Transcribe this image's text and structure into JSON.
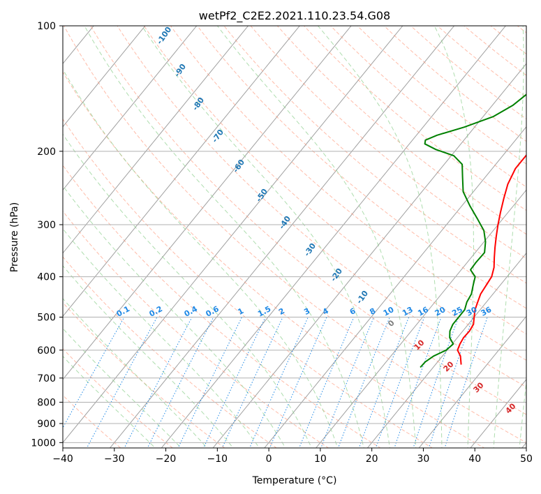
{
  "chart_data": {
    "type": "line",
    "title": "wetPf2_C2E2.2021.110.23.54.G08",
    "xlabel": "Temperature (°C)",
    "ylabel": "Pressure (hPa)",
    "xlim": [
      -40,
      50
    ],
    "ylim": [
      1030,
      100
    ],
    "x_ticks": [
      -40,
      -30,
      -20,
      -10,
      0,
      10,
      20,
      30,
      40,
      50
    ],
    "x_tick_labels": [
      "−40",
      "−30",
      "−20",
      "−10",
      "0",
      "10",
      "20",
      "30",
      "40",
      "50"
    ],
    "y_ticks": [
      100,
      200,
      300,
      400,
      500,
      600,
      700,
      800,
      900,
      1000
    ],
    "y_tick_labels": [
      "100",
      "200",
      "300",
      "400",
      "500",
      "600",
      "700",
      "800",
      "900",
      "1000"
    ],
    "grid": true,
    "series": [
      {
        "name": "temperature",
        "color": "#ff0000",
        "points": [
          [
            650,
            25.0
          ],
          [
            620,
            23.5
          ],
          [
            600,
            22.0
          ],
          [
            580,
            21.5
          ],
          [
            560,
            21.2
          ],
          [
            540,
            21.3
          ],
          [
            520,
            21.0
          ],
          [
            500,
            20.0
          ],
          [
            480,
            19.0
          ],
          [
            460,
            18.3
          ],
          [
            440,
            17.6
          ],
          [
            420,
            17.3
          ],
          [
            400,
            17.0
          ],
          [
            380,
            16.0
          ],
          [
            360,
            14.5
          ],
          [
            340,
            13.0
          ],
          [
            320,
            11.5
          ],
          [
            300,
            10.0
          ],
          [
            280,
            8.5
          ],
          [
            260,
            7.0
          ],
          [
            240,
            5.5
          ],
          [
            220,
            4.5
          ],
          [
            200,
            4.5
          ],
          [
            185,
            6.0
          ],
          [
            170,
            5.5
          ],
          [
            155,
            3.8
          ],
          [
            140,
            2.4
          ],
          [
            128,
            1.6
          ],
          [
            118,
            1.2
          ],
          [
            113,
            0.4
          ],
          [
            108,
            -2.0
          ],
          [
            103,
            -3.6
          ],
          [
            100,
            -4.0
          ]
        ]
      },
      {
        "name": "dewpoint",
        "color": "#008000",
        "points": [
          [
            660,
            17.5
          ],
          [
            640,
            17.6
          ],
          [
            620,
            18.3
          ],
          [
            600,
            19.8
          ],
          [
            580,
            20.2
          ],
          [
            560,
            18.5
          ],
          [
            540,
            17.5
          ],
          [
            520,
            17.0
          ],
          [
            500,
            17.0
          ],
          [
            480,
            17.0
          ],
          [
            460,
            16.2
          ],
          [
            440,
            15.8
          ],
          [
            420,
            14.8
          ],
          [
            400,
            13.8
          ],
          [
            385,
            11.8
          ],
          [
            370,
            11.7
          ],
          [
            350,
            11.8
          ],
          [
            330,
            10.3
          ],
          [
            310,
            8.2
          ],
          [
            290,
            5.0
          ],
          [
            270,
            1.5
          ],
          [
            250,
            -2.0
          ],
          [
            230,
            -4.5
          ],
          [
            215,
            -6.5
          ],
          [
            205,
            -9.5
          ],
          [
            198,
            -14.0
          ],
          [
            192,
            -17.0
          ],
          [
            188,
            -17.5
          ],
          [
            183,
            -16.0
          ],
          [
            175,
            -12.0
          ],
          [
            165,
            -8.0
          ],
          [
            155,
            -6.0
          ],
          [
            145,
            -5.0
          ],
          [
            135,
            -5.5
          ],
          [
            125,
            -6.5
          ],
          [
            115,
            -8.5
          ],
          [
            108,
            -8.0
          ],
          [
            103,
            -7.0
          ],
          [
            100,
            -5.0
          ]
        ]
      }
    ],
    "dry_adiabat_labels": [
      "-100",
      "-90",
      "-80",
      "-70",
      "-60",
      "-50",
      "-40",
      "-30",
      "-20",
      "-10"
    ],
    "mixing_ratio_labels": [
      "0.1",
      "0.2",
      "0.4",
      "0.6",
      "1",
      "1.5",
      "2",
      "3",
      "4",
      "6",
      "8",
      "10",
      "13",
      "16",
      "20",
      "25",
      "30",
      "36"
    ],
    "moist_adiabat_labels": [
      "0",
      "10",
      "20",
      "30",
      "40"
    ]
  },
  "colors": {
    "temperature": "#ff0000",
    "dewpoint": "#008000",
    "dry_adiabat": "#ff9070",
    "moist_adiabat": "#8ccf8c",
    "mixing_ratio": "#1e88e5",
    "dry_adiabat_label": "#1f77b4",
    "moist_label_red": "#d62728",
    "moist_label_gray": "#7f7f7f",
    "isotherm": "#a0a0a0"
  }
}
